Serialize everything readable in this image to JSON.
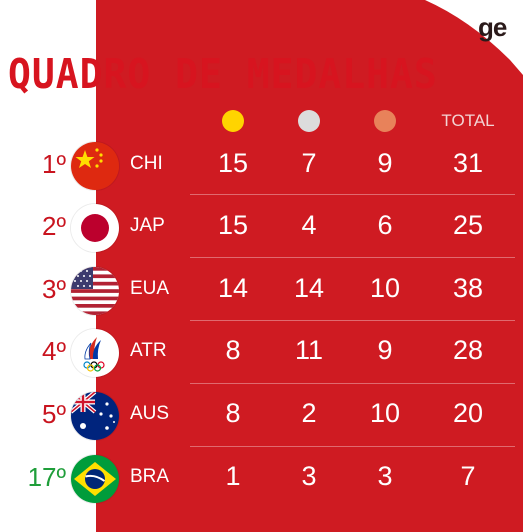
{
  "title": "QUADRO DE MEDALHAS",
  "logo": "ge",
  "header": {
    "total_label": "TOTAL"
  },
  "colors": {
    "panel_red": "#cf1b22",
    "title_red": "#d7141f",
    "gold": "#ffd400",
    "silver": "#dcdcdc",
    "bronze": "#e8825a",
    "rank_red": "#c9141f",
    "rank_green": "#1f9e3a"
  },
  "rows": [
    {
      "rank": "1º",
      "flag": "china-flag-icon",
      "code": "CHI",
      "gold": "15",
      "silver": "7",
      "bronze": "9",
      "total": "31"
    },
    {
      "rank": "2º",
      "flag": "japan-flag-icon",
      "code": "JAP",
      "gold": "15",
      "silver": "4",
      "bronze": "6",
      "total": "25"
    },
    {
      "rank": "3º",
      "flag": "usa-flag-icon",
      "code": "EUA",
      "gold": "14",
      "silver": "14",
      "bronze": "10",
      "total": "38"
    },
    {
      "rank": "4º",
      "flag": "roc-emblem-icon",
      "code": "ATR",
      "gold": "8",
      "silver": "11",
      "bronze": "9",
      "total": "28"
    },
    {
      "rank": "5º",
      "flag": "australia-flag-icon",
      "code": "AUS",
      "gold": "8",
      "silver": "2",
      "bronze": "10",
      "total": "20"
    },
    {
      "rank": "17º",
      "flag": "brazil-flag-icon",
      "code": "BRA",
      "gold": "1",
      "silver": "3",
      "bronze": "3",
      "total": "7"
    }
  ]
}
